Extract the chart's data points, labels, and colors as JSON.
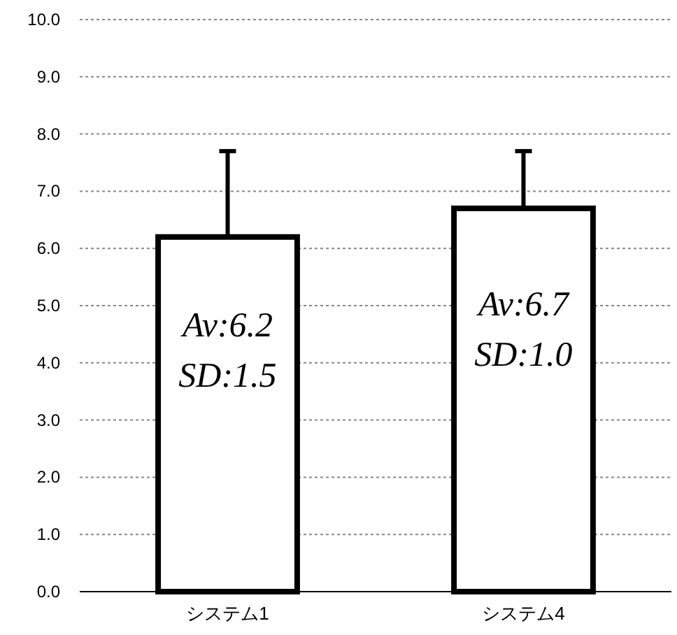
{
  "chart_data": {
    "type": "bar",
    "categories": [
      "システム1",
      "システム4"
    ],
    "values": [
      6.2,
      6.7
    ],
    "color": "#ffffff",
    "errors": [
      [
        6.2,
        7.7
      ],
      [
        6.7,
        7.7
      ]
    ],
    "value_labels": [
      "Av:6.2\nSD:1.5",
      "Av:6.7\nSD:1.0"
    ],
    "ylim": [
      0,
      10
    ],
    "yticks": [
      {
        "value": 0,
        "label": "0.0"
      },
      {
        "value": 1,
        "label": "1.0"
      },
      {
        "value": 2,
        "label": "2.0"
      },
      {
        "value": 3,
        "label": "3.0"
      },
      {
        "value": 4,
        "label": "4.0"
      },
      {
        "value": 5,
        "label": "5.0"
      },
      {
        "value": 6,
        "label": "6.0"
      },
      {
        "value": 7,
        "label": "7.0"
      },
      {
        "value": 8,
        "label": "8.0"
      },
      {
        "value": 9,
        "label": "9.0"
      },
      {
        "value": 10,
        "label": "10.0"
      }
    ],
    "grid": "y"
  }
}
